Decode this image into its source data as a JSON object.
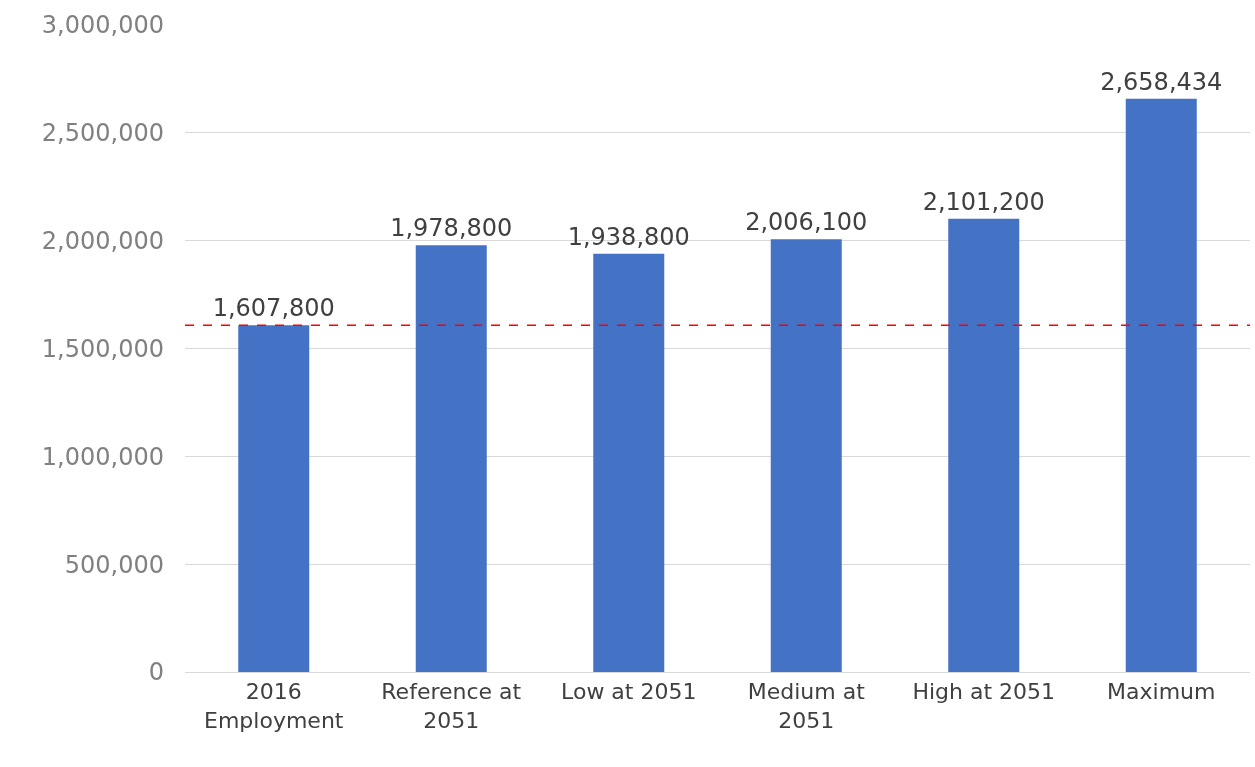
{
  "chart_data": {
    "type": "bar",
    "categories": [
      "2016 Employment",
      "Reference at 2051",
      "Low at 2051",
      "Medium at 2051",
      "High at 2051",
      "Maximum"
    ],
    "values": [
      1607800,
      1978800,
      1938800,
      2006100,
      2101200,
      2658434
    ],
    "color": "#4472c4",
    "value_labels": [
      "1,607,800",
      "1,978,800",
      "1,938,800",
      "2,006,100",
      "2,101,200",
      "2,658,434"
    ],
    "ylim": [
      0,
      3000000
    ],
    "yticks": [
      {
        "value": 0,
        "label": "0"
      },
      {
        "value": 500000,
        "label": "500,000"
      },
      {
        "value": 1000000,
        "label": "1,000,000"
      },
      {
        "value": 1500000,
        "label": "1,500,000"
      },
      {
        "value": 2000000,
        "label": "2,000,000"
      },
      {
        "value": 2500000,
        "label": "2,500,000"
      },
      {
        "value": 3000000,
        "label": "3,000,000"
      }
    ],
    "grid": "y",
    "legend": false,
    "ref_lines": [
      {
        "axis": "y",
        "value": 1607800,
        "color": "#ff0000",
        "line_style": "dashed"
      }
    ]
  }
}
